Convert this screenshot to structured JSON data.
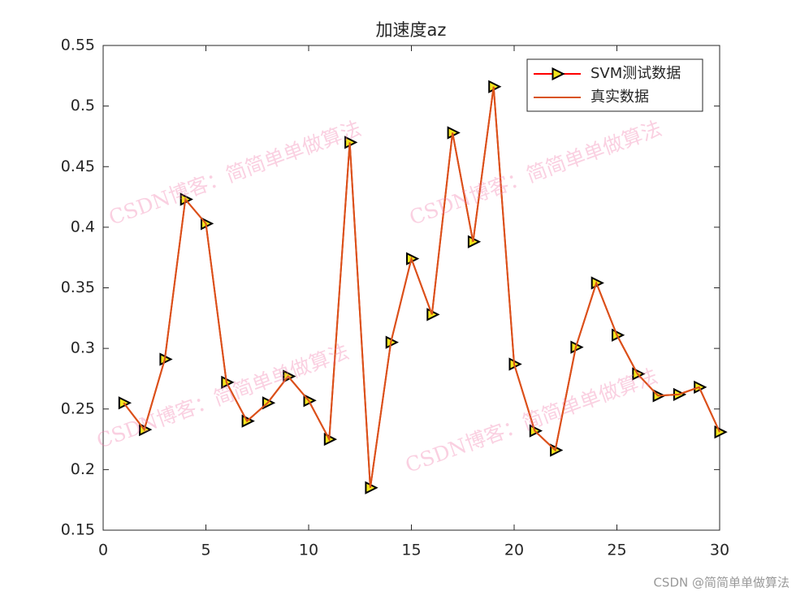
{
  "chart_data": {
    "type": "line",
    "title": "加速度az",
    "x": [
      1,
      2,
      3,
      4,
      5,
      6,
      7,
      8,
      9,
      10,
      11,
      12,
      13,
      14,
      15,
      16,
      17,
      18,
      19,
      20,
      21,
      22,
      23,
      24,
      25,
      26,
      27,
      28,
      29,
      30
    ],
    "series": [
      {
        "name": "SVM测试数据",
        "color": "#ff0000",
        "marker": "triangle-right",
        "values": [
          0.255,
          0.233,
          0.291,
          0.423,
          0.403,
          0.272,
          0.24,
          0.255,
          0.277,
          0.257,
          0.225,
          0.47,
          0.185,
          0.305,
          0.374,
          0.328,
          0.478,
          0.388,
          0.516,
          0.287,
          0.232,
          0.216,
          0.301,
          0.354,
          0.311,
          0.279,
          0.261,
          0.262,
          0.268,
          0.231
        ]
      },
      {
        "name": "真实数据",
        "color": "#d95319",
        "values": [
          0.255,
          0.233,
          0.291,
          0.423,
          0.403,
          0.272,
          0.24,
          0.255,
          0.277,
          0.257,
          0.225,
          0.47,
          0.185,
          0.305,
          0.374,
          0.328,
          0.478,
          0.388,
          0.516,
          0.287,
          0.232,
          0.216,
          0.301,
          0.354,
          0.311,
          0.279,
          0.261,
          0.262,
          0.268,
          0.231
        ]
      }
    ],
    "xlim": [
      0,
      30
    ],
    "xticks": [
      0,
      5,
      10,
      15,
      20,
      25,
      30
    ],
    "ylim": [
      0.15,
      0.55
    ],
    "yticks": [
      0.15,
      0.2,
      0.25,
      0.3,
      0.35,
      0.4,
      0.45,
      0.5,
      0.55
    ],
    "legend": "upper right",
    "grid": false
  },
  "watermark": "CSDN博客：简简单单做算法",
  "footer": "CSDN @简简单单做算法"
}
